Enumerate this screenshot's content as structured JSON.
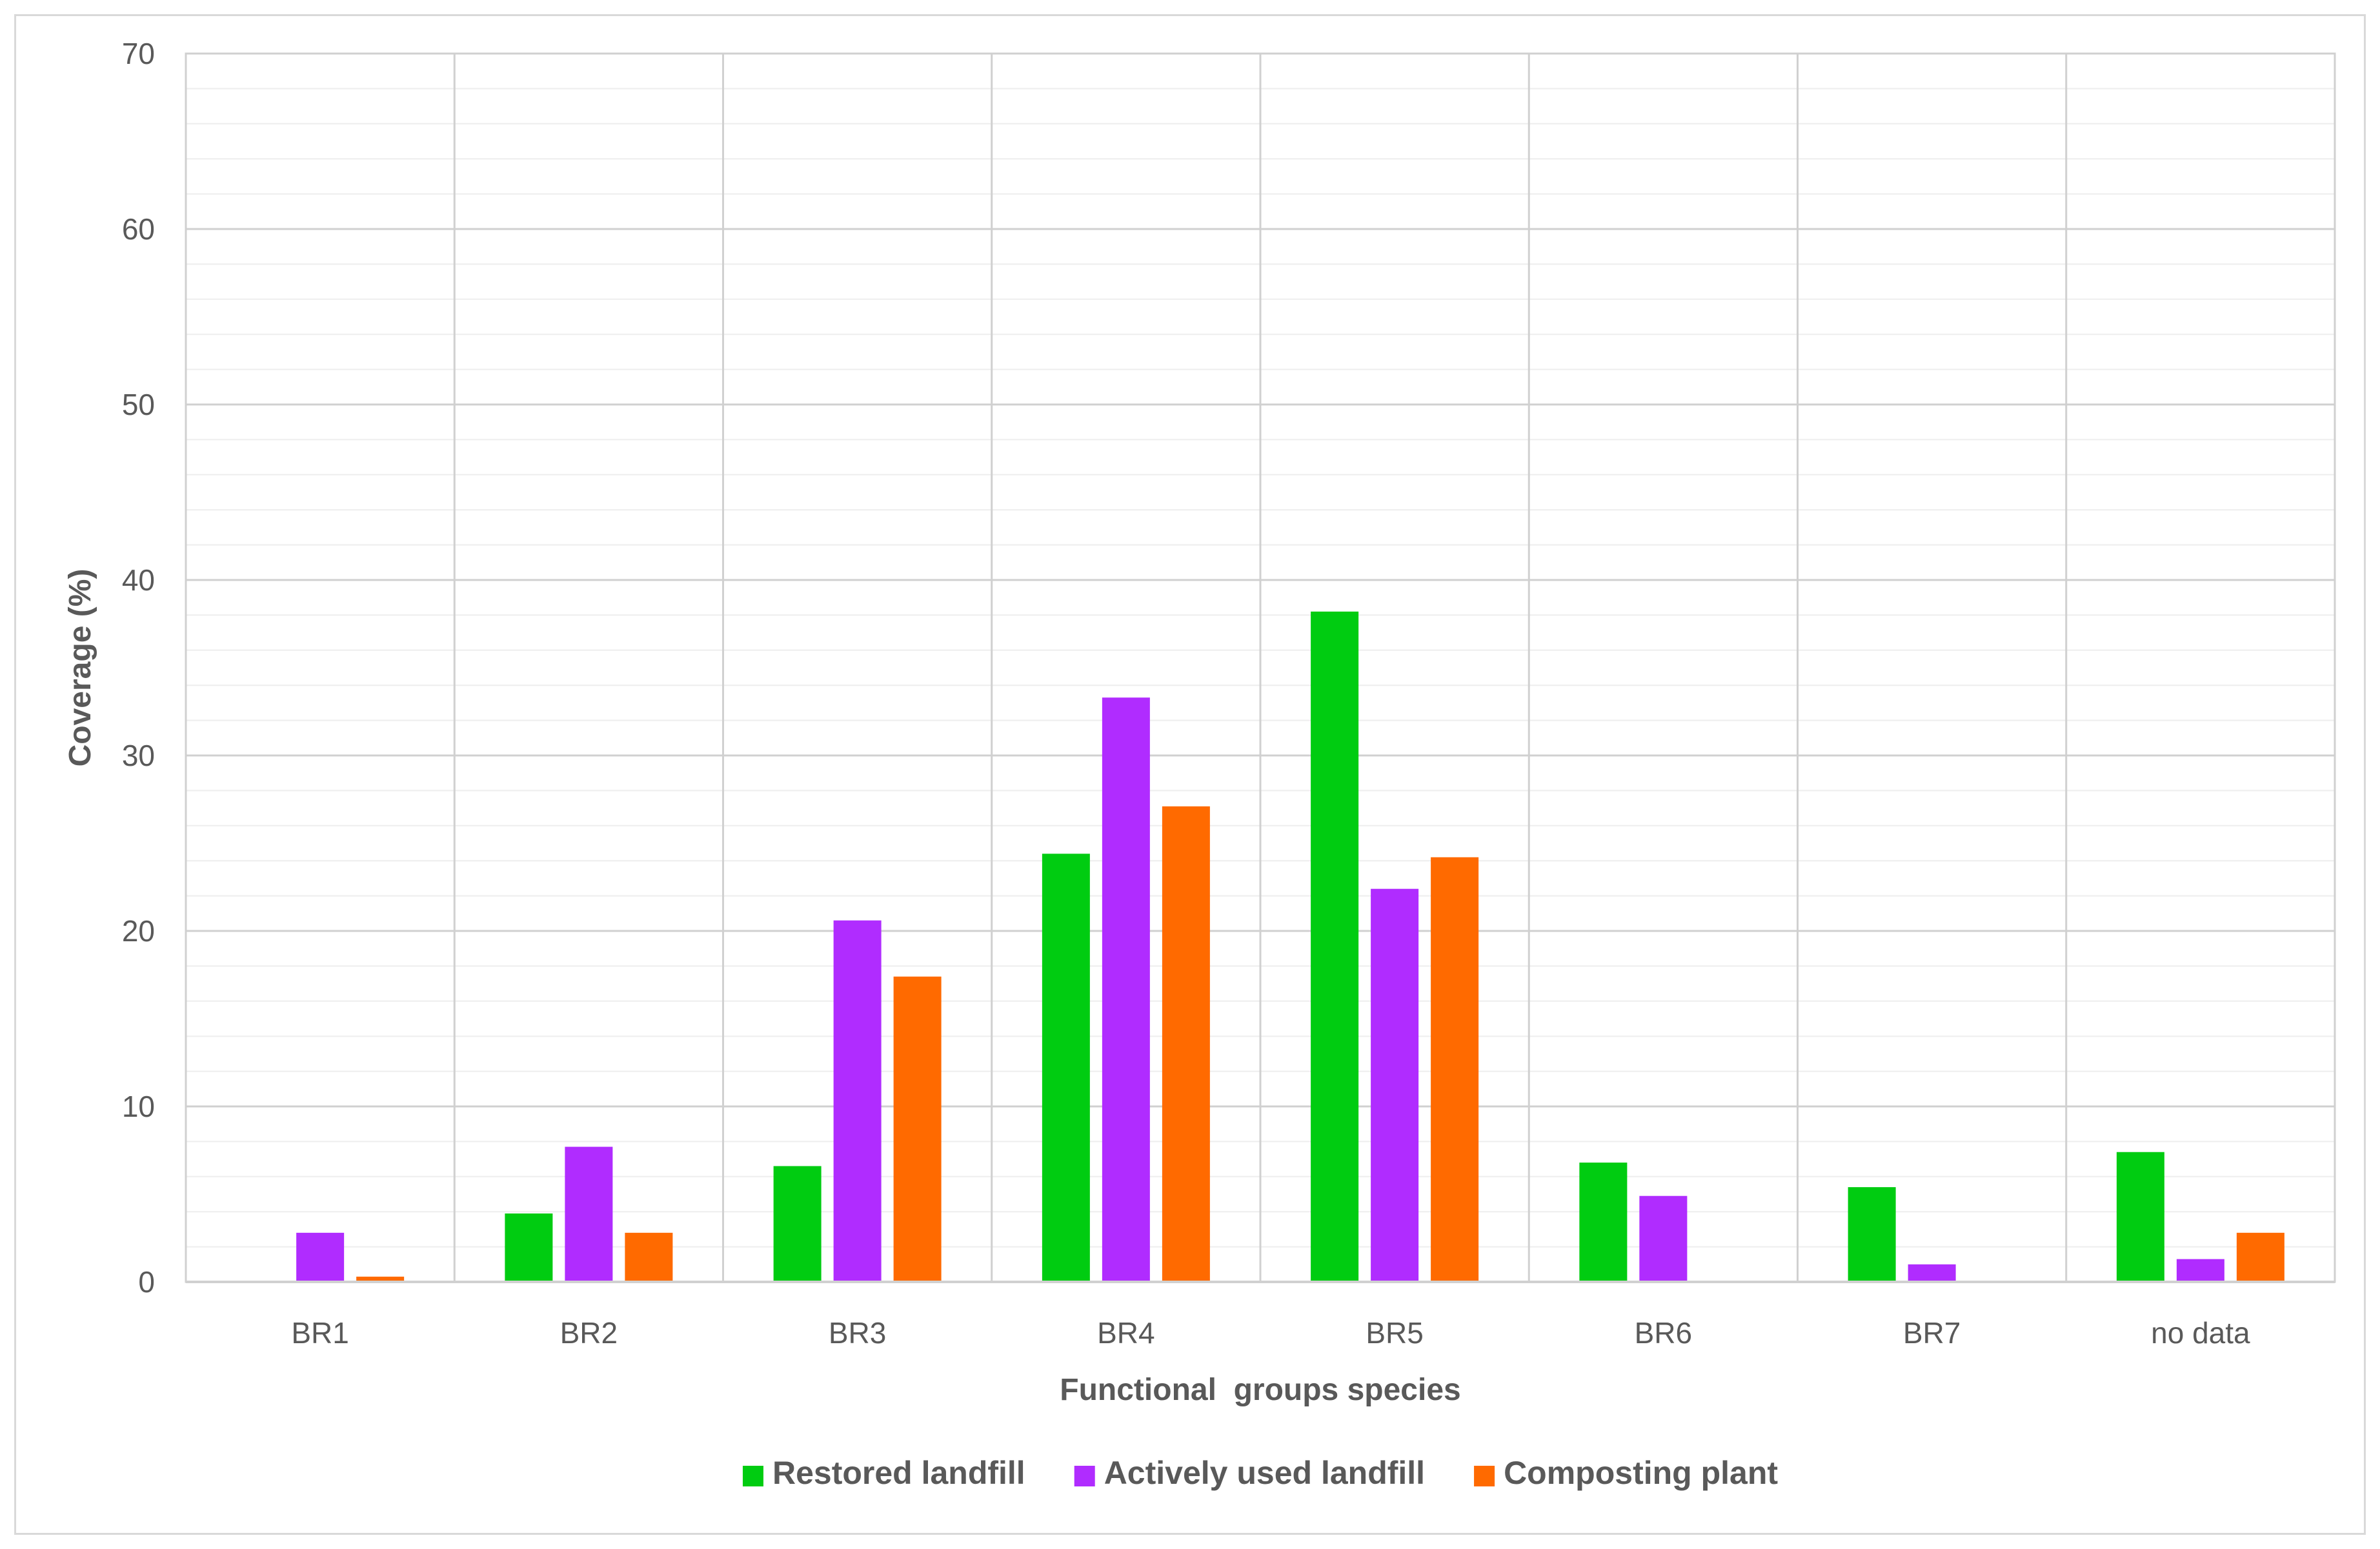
{
  "chart_data": {
    "type": "bar",
    "title": "",
    "xlabel": "Functional  groups species",
    "ylabel": "Coverage (%)",
    "ylim": [
      0,
      70
    ],
    "yticks": [
      0,
      10,
      20,
      30,
      40,
      50,
      60,
      70
    ],
    "minor_gridlines": true,
    "legend_position": "bottom",
    "categories": [
      "BR1",
      "BR2",
      "BR3",
      "BR4",
      "BR5",
      "BR6",
      "BR7",
      "no data"
    ],
    "series": [
      {
        "name": "Restored landfill",
        "color": "#00cc11",
        "values": [
          0,
          3.9,
          6.6,
          24.4,
          38.2,
          6.8,
          5.4,
          7.4
        ]
      },
      {
        "name": "Actively used landfill",
        "color": "#b02cff",
        "values": [
          2.8,
          7.7,
          20.6,
          33.3,
          22.4,
          4.9,
          1.0,
          1.3
        ]
      },
      {
        "name": "Composting plant",
        "color": "#ff6a00",
        "values": [
          0.3,
          2.8,
          17.4,
          27.1,
          24.2,
          0,
          0,
          2.8
        ]
      }
    ]
  }
}
